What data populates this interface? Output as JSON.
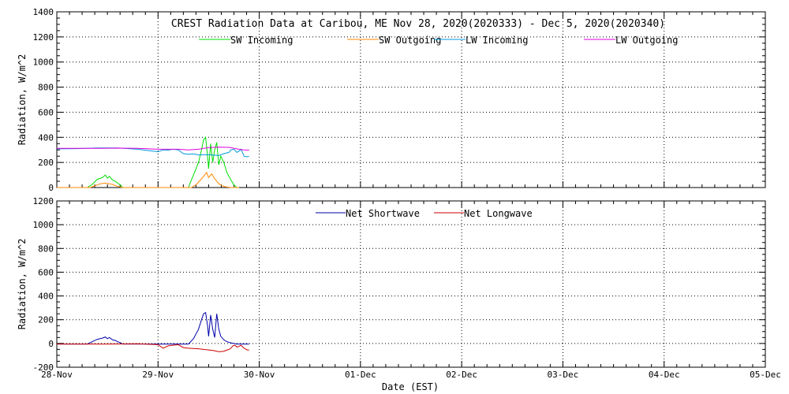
{
  "chart_data": [
    {
      "type": "line",
      "title": "CREST Radiation Data at Caribou, ME   Nov 28, 2020(2020333) - Dec  5, 2020(2020340)",
      "xlabel": "",
      "ylabel": "Radiation, W/m^2",
      "xlim": [
        0,
        7
      ],
      "ylim": [
        0,
        1400
      ],
      "yticks": [
        "0",
        "200",
        "400",
        "600",
        "800",
        "1000",
        "1200",
        "1400"
      ],
      "grid": true,
      "legend_position": "top",
      "series": [
        {
          "name": "SW Incoming",
          "color": "#00dd00",
          "x": [
            0.0,
            0.3,
            0.35,
            0.4,
            0.45,
            0.48,
            0.5,
            0.52,
            0.55,
            0.58,
            0.6,
            0.63,
            0.65,
            0.7,
            1.3,
            1.32,
            1.36,
            1.4,
            1.43,
            1.45,
            1.47,
            1.49,
            1.5,
            1.52,
            1.54,
            1.56,
            1.58,
            1.6,
            1.62,
            1.65,
            1.68,
            1.72,
            1.75,
            1.78,
            1.8
          ],
          "y": [
            0,
            0,
            25,
            65,
            80,
            100,
            75,
            90,
            60,
            50,
            35,
            20,
            0,
            0,
            0,
            40,
            120,
            200,
            300,
            380,
            400,
            250,
            150,
            350,
            200,
            300,
            360,
            180,
            250,
            200,
            120,
            60,
            20,
            0,
            0
          ]
        },
        {
          "name": "SW Outgoing",
          "color": "#ff8800",
          "x": [
            0.0,
            0.33,
            0.38,
            0.43,
            0.48,
            0.52,
            0.55,
            0.58,
            0.62,
            0.65,
            0.7,
            1.33,
            1.38,
            1.42,
            1.45,
            1.48,
            1.5,
            1.53,
            1.56,
            1.6,
            1.63,
            1.67,
            1.72,
            1.8
          ],
          "y": [
            0,
            0,
            15,
            30,
            35,
            30,
            25,
            15,
            5,
            0,
            0,
            0,
            25,
            60,
            90,
            120,
            80,
            110,
            70,
            30,
            15,
            5,
            0,
            0
          ],
          "sw_out_total": null
        },
        {
          "name": "LW Incoming",
          "color": "#0099dd",
          "x": [
            0.0,
            0.2,
            0.4,
            0.6,
            0.8,
            0.9,
            0.95,
            1.0,
            1.05,
            1.1,
            1.15,
            1.2,
            1.25,
            1.3,
            1.35,
            1.4,
            1.5,
            1.55,
            1.6,
            1.65,
            1.7,
            1.72,
            1.75,
            1.78,
            1.8,
            1.82,
            1.85,
            1.88,
            1.9
          ],
          "y": [
            308,
            310,
            315,
            315,
            305,
            295,
            290,
            285,
            300,
            298,
            305,
            300,
            270,
            265,
            268,
            260,
            262,
            258,
            255,
            270,
            280,
            300,
            305,
            280,
            290,
            305,
            250,
            245,
            250
          ]
        },
        {
          "name": "LW Outgoing",
          "color": "#dd00dd",
          "x": [
            0.0,
            0.2,
            0.4,
            0.6,
            0.8,
            1.0,
            1.1,
            1.2,
            1.3,
            1.4,
            1.5,
            1.6,
            1.7,
            1.8,
            1.85,
            1.9
          ],
          "y": [
            312,
            312,
            312,
            314,
            312,
            305,
            305,
            305,
            300,
            305,
            318,
            322,
            320,
            305,
            300,
            298
          ]
        }
      ]
    },
    {
      "type": "line",
      "title": "",
      "xlabel": "Date (EST)",
      "ylabel": "Radiation, W/m^2",
      "xlim": [
        0,
        7
      ],
      "ylim": [
        -200,
        1200
      ],
      "yticks": [
        "-200",
        "0",
        "200",
        "400",
        "600",
        "800",
        "1000",
        "1200"
      ],
      "xticks": [
        "28-Nov",
        "29-Nov",
        "30-Nov",
        "01-Dec",
        "02-Dec",
        "03-Dec",
        "04-Dec",
        "05-Dec"
      ],
      "grid": true,
      "legend_position": "top",
      "series": [
        {
          "name": "Net Shortwave",
          "color": "#0000aa",
          "x": [
            0.0,
            0.3,
            0.35,
            0.4,
            0.45,
            0.48,
            0.5,
            0.52,
            0.55,
            0.58,
            0.6,
            0.63,
            0.65,
            0.7,
            1.3,
            1.35,
            1.4,
            1.43,
            1.45,
            1.47,
            1.49,
            1.5,
            1.52,
            1.54,
            1.56,
            1.58,
            1.6,
            1.62,
            1.65,
            1.68,
            1.72,
            1.75,
            1.78,
            1.9
          ],
          "y": [
            -5,
            -5,
            15,
            35,
            45,
            55,
            40,
            50,
            30,
            25,
            15,
            5,
            -5,
            -5,
            -5,
            40,
            120,
            200,
            250,
            260,
            150,
            60,
            240,
            120,
            50,
            250,
            120,
            60,
            30,
            15,
            5,
            0,
            -5,
            -5
          ]
        },
        {
          "name": "Net Longwave",
          "color": "#cc0000",
          "x": [
            0.0,
            0.5,
            0.8,
            1.0,
            1.05,
            1.1,
            1.15,
            1.2,
            1.25,
            1.3,
            1.4,
            1.5,
            1.55,
            1.6,
            1.65,
            1.7,
            1.72,
            1.74,
            1.76,
            1.78,
            1.8,
            1.82,
            1.85,
            1.88,
            1.9
          ],
          "y": [
            -5,
            -5,
            -3,
            -10,
            -40,
            -20,
            -15,
            -10,
            -35,
            -40,
            -45,
            -55,
            -60,
            -70,
            -65,
            -50,
            -40,
            -20,
            -15,
            -30,
            -25,
            -15,
            -40,
            -55,
            -55
          ]
        }
      ]
    }
  ]
}
